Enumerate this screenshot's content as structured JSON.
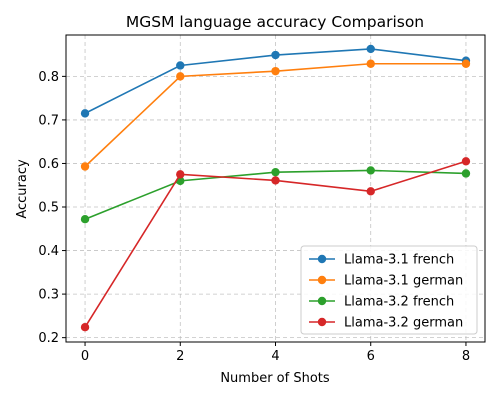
{
  "chart_data": {
    "type": "line",
    "title": "MGSM language accuracy Comparison",
    "xlabel": "Number of Shots",
    "ylabel": "Accuracy",
    "x": [
      0,
      2,
      4,
      6,
      8
    ],
    "xlim": [
      -0.4,
      8.4
    ],
    "ylim": [
      0.19,
      0.895
    ],
    "xticks": [
      "0",
      "2",
      "4",
      "6",
      "8"
    ],
    "yticks": [
      "0.2",
      "0.3",
      "0.4",
      "0.5",
      "0.6",
      "0.7",
      "0.8"
    ],
    "grid": true,
    "legend_position": "lower-right",
    "series": [
      {
        "name": "Llama-3.1 french",
        "color": "#1f77b4",
        "values": [
          0.715,
          0.825,
          0.849,
          0.863,
          0.836
        ]
      },
      {
        "name": "Llama-3.1 german",
        "color": "#ff7f0e",
        "values": [
          0.593,
          0.8,
          0.812,
          0.829,
          0.829
        ]
      },
      {
        "name": "Llama-3.2 french",
        "color": "#2ca02c",
        "values": [
          0.472,
          0.56,
          0.58,
          0.584,
          0.577
        ]
      },
      {
        "name": "Llama-3.2 german",
        "color": "#d62728",
        "values": [
          0.224,
          0.575,
          0.561,
          0.536,
          0.605
        ]
      }
    ]
  }
}
